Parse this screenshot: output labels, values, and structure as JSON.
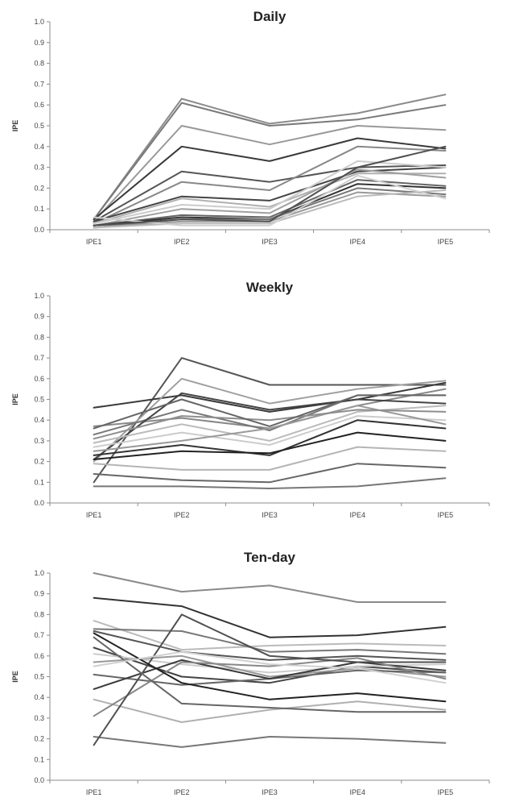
{
  "chart_data": [
    {
      "type": "line",
      "title": "Daily",
      "xlabel": "",
      "ylabel": "IPE",
      "ylim": [
        0,
        1
      ],
      "yticks": [
        "0.0",
        "0.1",
        "0.2",
        "0.3",
        "0.4",
        "0.5",
        "0.6",
        "0.7",
        "0.8",
        "0.9",
        "1.0"
      ],
      "x": [
        "IPE1",
        "IPE2",
        "IPE3",
        "IPE4",
        "IPE5"
      ],
      "grid": false,
      "legend": "none",
      "series": [
        {
          "values": [
            0.05,
            0.63,
            0.51,
            0.56,
            0.65
          ],
          "color": "#8a8a8a"
        },
        {
          "values": [
            0.05,
            0.61,
            0.5,
            0.53,
            0.6
          ],
          "color": "#7a7a7a"
        },
        {
          "values": [
            0.04,
            0.5,
            0.41,
            0.5,
            0.48
          ],
          "color": "#999999"
        },
        {
          "values": [
            0.05,
            0.4,
            0.33,
            0.44,
            0.39
          ],
          "color": "#3a3a3a"
        },
        {
          "values": [
            0.04,
            0.28,
            0.23,
            0.3,
            0.31
          ],
          "color": "#555555"
        },
        {
          "values": [
            0.03,
            0.23,
            0.19,
            0.4,
            0.38
          ],
          "color": "#888888"
        },
        {
          "values": [
            0.04,
            0.16,
            0.14,
            0.28,
            0.3
          ],
          "color": "#444444"
        },
        {
          "values": [
            0.03,
            0.15,
            0.11,
            0.27,
            0.27
          ],
          "color": "#b0b0b0"
        },
        {
          "values": [
            0.03,
            0.12,
            0.1,
            0.33,
            0.3
          ],
          "color": "#cccccc"
        },
        {
          "values": [
            0.02,
            0.1,
            0.08,
            0.29,
            0.25
          ],
          "color": "#a0a0a0"
        },
        {
          "values": [
            0.02,
            0.07,
            0.06,
            0.24,
            0.21
          ],
          "color": "#666666"
        },
        {
          "values": [
            0.02,
            0.06,
            0.05,
            0.22,
            0.2
          ],
          "color": "#333333"
        },
        {
          "values": [
            0.01,
            0.05,
            0.05,
            0.2,
            0.17
          ],
          "color": "#777777"
        },
        {
          "values": [
            0.01,
            0.04,
            0.04,
            0.18,
            0.16
          ],
          "color": "#999999"
        },
        {
          "values": [
            0.01,
            0.03,
            0.03,
            0.16,
            0.19
          ],
          "color": "#bbbbbb"
        },
        {
          "values": [
            0.06,
            0.02,
            0.02,
            0.26,
            0.15
          ],
          "color": "#d0d0d0"
        },
        {
          "values": [
            0.02,
            0.05,
            0.04,
            0.3,
            0.4
          ],
          "color": "#505050"
        }
      ]
    },
    {
      "type": "line",
      "title": "Weekly",
      "xlabel": "",
      "ylabel": "IPE",
      "ylim": [
        0,
        1
      ],
      "yticks": [
        "0.0",
        "0.1",
        "0.2",
        "0.3",
        "0.4",
        "0.5",
        "0.6",
        "0.7",
        "0.8",
        "0.9",
        "1.0"
      ],
      "x": [
        "IPE1",
        "IPE2",
        "IPE3",
        "IPE4",
        "IPE5"
      ],
      "grid": false,
      "legend": "none",
      "series": [
        {
          "values": [
            0.1,
            0.7,
            0.57,
            0.57,
            0.57
          ],
          "color": "#555555"
        },
        {
          "values": [
            0.46,
            0.52,
            0.44,
            0.5,
            0.58
          ],
          "color": "#3a3a3a"
        },
        {
          "values": [
            0.2,
            0.6,
            0.48,
            0.55,
            0.59
          ],
          "color": "#a0a0a0"
        },
        {
          "values": [
            0.37,
            0.41,
            0.36,
            0.47,
            0.55
          ],
          "color": "#888888"
        },
        {
          "values": [
            0.33,
            0.45,
            0.35,
            0.52,
            0.52
          ],
          "color": "#777777"
        },
        {
          "values": [
            0.21,
            0.53,
            0.45,
            0.5,
            0.48
          ],
          "color": "#444444"
        },
        {
          "values": [
            0.29,
            0.38,
            0.3,
            0.44,
            0.47
          ],
          "color": "#bbbbbb"
        },
        {
          "values": [
            0.27,
            0.34,
            0.28,
            0.42,
            0.4
          ],
          "color": "#cccccc"
        },
        {
          "values": [
            0.25,
            0.3,
            0.36,
            0.47,
            0.38
          ],
          "color": "#999999"
        },
        {
          "values": [
            0.23,
            0.28,
            0.23,
            0.4,
            0.36
          ],
          "color": "#333333"
        },
        {
          "values": [
            0.21,
            0.25,
            0.24,
            0.34,
            0.3
          ],
          "color": "#222222"
        },
        {
          "values": [
            0.19,
            0.16,
            0.16,
            0.27,
            0.25
          ],
          "color": "#b5b5b5"
        },
        {
          "values": [
            0.14,
            0.11,
            0.1,
            0.19,
            0.17
          ],
          "color": "#666666"
        },
        {
          "values": [
            0.08,
            0.08,
            0.07,
            0.08,
            0.12
          ],
          "color": "#777777"
        },
        {
          "values": [
            0.31,
            0.42,
            0.4,
            0.45,
            0.44
          ],
          "color": "#8e8e8e"
        },
        {
          "values": [
            0.36,
            0.5,
            0.37,
            0.52,
            0.52
          ],
          "color": "#666666"
        }
      ]
    },
    {
      "type": "line",
      "title": "Ten-day",
      "xlabel": "",
      "ylabel": "IPE",
      "ylim": [
        0,
        1
      ],
      "yticks": [
        "0.0",
        "0.1",
        "0.2",
        "0.3",
        "0.4",
        "0.5",
        "0.6",
        "0.7",
        "0.8",
        "0.9",
        "1.0"
      ],
      "x": [
        "IPE1",
        "IPE2",
        "IPE3",
        "IPE4",
        "IPE5"
      ],
      "grid": false,
      "legend": "none",
      "series": [
        {
          "values": [
            1.0,
            0.91,
            0.94,
            0.86,
            0.86
          ],
          "color": "#8a8a8a"
        },
        {
          "values": [
            0.88,
            0.84,
            0.69,
            0.7,
            0.74
          ],
          "color": "#333333"
        },
        {
          "values": [
            0.77,
            0.63,
            0.65,
            0.66,
            0.65
          ],
          "color": "#bbbbbb"
        },
        {
          "values": [
            0.73,
            0.72,
            0.62,
            0.63,
            0.61
          ],
          "color": "#777777"
        },
        {
          "values": [
            0.72,
            0.62,
            0.58,
            0.6,
            0.58
          ],
          "color": "#555555"
        },
        {
          "values": [
            0.64,
            0.5,
            0.47,
            0.55,
            0.52
          ],
          "color": "#444444"
        },
        {
          "values": [
            0.61,
            0.56,
            0.52,
            0.55,
            0.56
          ],
          "color": "#cccccc"
        },
        {
          "values": [
            0.57,
            0.6,
            0.5,
            0.54,
            0.5
          ],
          "color": "#999999"
        },
        {
          "values": [
            0.51,
            0.46,
            0.49,
            0.53,
            0.52
          ],
          "color": "#666666"
        },
        {
          "values": [
            0.44,
            0.58,
            0.49,
            0.57,
            0.53
          ],
          "color": "#3a3a3a"
        },
        {
          "values": [
            0.39,
            0.28,
            0.34,
            0.38,
            0.34
          ],
          "color": "#b0b0b0"
        },
        {
          "values": [
            0.31,
            0.57,
            0.55,
            0.59,
            0.49
          ],
          "color": "#888888"
        },
        {
          "values": [
            0.21,
            0.16,
            0.21,
            0.2,
            0.18
          ],
          "color": "#777777"
        },
        {
          "values": [
            0.17,
            0.8,
            0.6,
            0.57,
            0.57
          ],
          "color": "#505050"
        },
        {
          "values": [
            0.69,
            0.37,
            0.35,
            0.33,
            0.33
          ],
          "color": "#666666"
        },
        {
          "values": [
            0.71,
            0.47,
            0.39,
            0.42,
            0.38
          ],
          "color": "#222222"
        },
        {
          "values": [
            0.55,
            0.62,
            0.56,
            0.54,
            0.47
          ],
          "color": "#d0d0d0"
        }
      ]
    }
  ]
}
